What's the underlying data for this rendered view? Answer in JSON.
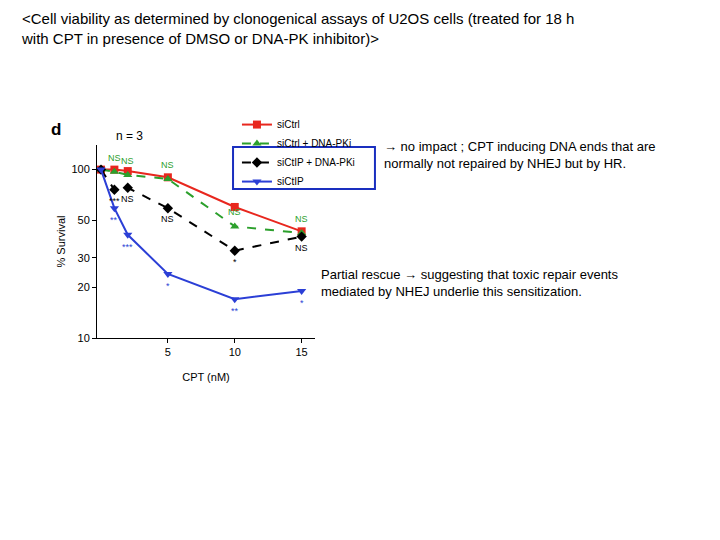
{
  "chart_data": {
    "type": "line",
    "title": "<Cell viability as determined by clonogenical assays of U2OS cells (treated for 18 h with CPT in presence of DMSO or DNA-PK inhibitor)>",
    "x_label": "CPT (nM)",
    "y_label": "% Survival",
    "x": [
      0,
      1,
      2,
      5,
      10,
      15
    ],
    "series": [
      {
        "name": "siCtrl",
        "color": "#e8271e",
        "marker": "square",
        "line_style": "solid",
        "values": [
          100,
          100,
          98,
          90,
          60,
          43
        ]
      },
      {
        "name": "siCtrl + DNA-PKi",
        "color": "#2ca02c",
        "marker": "triangle-up",
        "line_style": "dashed",
        "values": [
          100,
          97,
          93,
          88,
          46,
          42
        ],
        "significance": [
          null,
          "NS",
          "NS",
          "NS",
          "NS",
          "NS"
        ]
      },
      {
        "name": "siCtIP + DNA-PKi",
        "color": "#000000",
        "marker": "diamond",
        "line_style": "dashed",
        "values": [
          100,
          76,
          78,
          59,
          33,
          40
        ],
        "significance": [
          null,
          "***",
          "NS",
          "NS",
          "*",
          "NS"
        ]
      },
      {
        "name": "siCtIP",
        "color": "#2b3fd6",
        "marker": "triangle-down",
        "line_style": "solid",
        "values": [
          100,
          59,
          41,
          24,
          17,
          19
        ],
        "significance": [
          null,
          "**",
          "***",
          "*",
          "**",
          "*"
        ]
      }
    ],
    "xlim": [
      -0.3,
      16
    ],
    "xticks": [
      5,
      10,
      15
    ],
    "ylim": [
      10,
      140
    ],
    "yticks": [
      10,
      20,
      30,
      50,
      100
    ],
    "log": "y",
    "grid": false,
    "legend": "upper right",
    "annotations": [
      "d",
      "n = 3",
      "→ no impact ; CPT inducing DNA ends that are normally not repaired by NHEJ but by HR.",
      "Partial rescue → suggesting that toxic repair events mediated by NHEJ underlie this sensitization."
    ]
  }
}
